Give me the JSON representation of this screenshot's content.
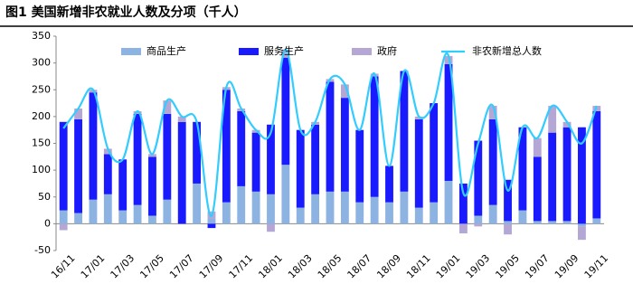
{
  "chart_data": {
    "type": "bar",
    "title": "图1  美国新增非农就业人数及分项（千人）",
    "stacked": true,
    "categories": [
      "16/11",
      null,
      "17/01",
      null,
      "17/03",
      null,
      "17/05",
      null,
      "17/07",
      null,
      "17/09",
      null,
      "17/11",
      null,
      "18/01",
      null,
      "18/03",
      null,
      "18/05",
      null,
      "18/07",
      null,
      "18/09",
      null,
      "18/11",
      null,
      "19/01",
      null,
      "19/03",
      null,
      "19/05",
      null,
      "19/07",
      null,
      "19/09",
      null,
      "19/11"
    ],
    "series": [
      {
        "name": "商品生产",
        "color": "#8db3e2",
        "values": [
          25,
          20,
          45,
          55,
          25,
          35,
          15,
          45,
          0,
          75,
          10,
          40,
          70,
          60,
          55,
          110,
          30,
          55,
          60,
          60,
          40,
          50,
          40,
          60,
          30,
          40,
          80,
          0,
          15,
          35,
          5,
          25,
          5,
          5,
          5,
          -5,
          10
        ]
      },
      {
        "name": "服务生产",
        "color": "#1a1aff",
        "values": [
          165,
          175,
          200,
          75,
          95,
          170,
          110,
          160,
          190,
          115,
          -8,
          210,
          140,
          110,
          130,
          200,
          145,
          130,
          205,
          175,
          135,
          225,
          68,
          225,
          165,
          185,
          218,
          75,
          140,
          160,
          77,
          155,
          120,
          165,
          175,
          180,
          200
        ]
      },
      {
        "name": "政府",
        "color": "#b4a7d6",
        "values": [
          -12,
          20,
          5,
          10,
          0,
          5,
          5,
          25,
          10,
          0,
          13,
          5,
          5,
          5,
          -15,
          15,
          0,
          5,
          5,
          25,
          0,
          5,
          0,
          0,
          5,
          0,
          15,
          -18,
          -5,
          25,
          -20,
          0,
          35,
          50,
          10,
          -25,
          10
        ]
      },
      {
        "name": "非农新增总人数",
        "type": "line",
        "color": "#33ccff",
        "values": [
          178,
          215,
          250,
          140,
          120,
          210,
          130,
          230,
          200,
          190,
          15,
          255,
          215,
          175,
          170,
          325,
          175,
          190,
          270,
          260,
          175,
          280,
          108,
          285,
          200,
          225,
          313,
          57,
          150,
          220,
          62,
          180,
          160,
          220,
          190,
          150,
          220
        ]
      }
    ],
    "ylim": [
      -50,
      350
    ],
    "yticks": [
      -50,
      0,
      50,
      100,
      150,
      200,
      250,
      300,
      350
    ]
  }
}
